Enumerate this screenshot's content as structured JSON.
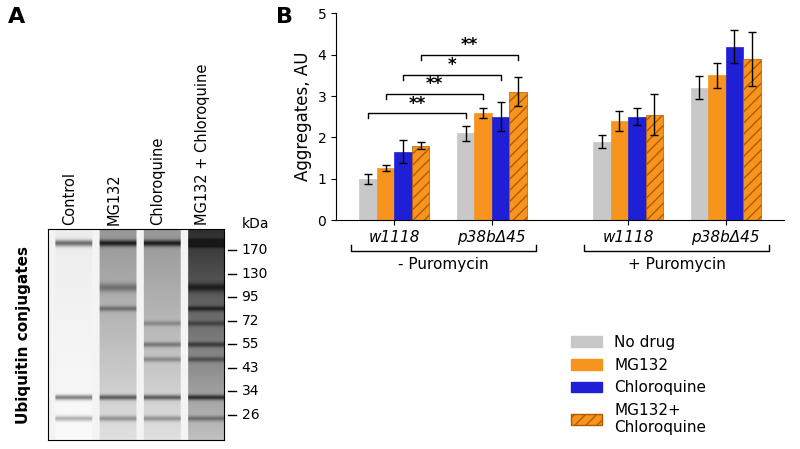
{
  "panel_a": {
    "label": "A",
    "y_label": "Ubiquitin conjugates",
    "lanes": [
      "Control",
      "MG132",
      "Chloroquine",
      "MG132 + Chloroquine"
    ],
    "marker_title": "kDa",
    "markers": [
      170,
      130,
      95,
      72,
      55,
      43,
      34,
      26
    ]
  },
  "chart_data": {
    "label": "B",
    "type": "bar",
    "y_label": "Aggregates, AU",
    "groups": [
      {
        "label": "- Puromycin",
        "categories": [
          "w1118",
          "p38bΔ45"
        ]
      },
      {
        "label": "+ Puromycin",
        "categories": [
          "w1118",
          "p38bΔ45"
        ]
      }
    ],
    "series": [
      {
        "name": "No drug",
        "color": "#c8c8c8",
        "values": [
          1.0,
          2.1,
          1.9,
          3.2
        ],
        "errors": [
          0.12,
          0.18,
          0.15,
          0.28
        ]
      },
      {
        "name": "MG132",
        "color": "#f7941d",
        "values": [
          1.25,
          2.6,
          2.4,
          3.5
        ],
        "errors": [
          0.07,
          0.12,
          0.25,
          0.3
        ]
      },
      {
        "name": "Chloroquine",
        "color": "#1f1fd6",
        "values": [
          1.65,
          2.5,
          2.5,
          4.2
        ],
        "errors": [
          0.28,
          0.35,
          0.2,
          0.4
        ]
      },
      {
        "name": "MG132+\nChloroquine",
        "color": "#f7941d",
        "values": [
          1.8,
          3.1,
          2.55,
          3.9
        ],
        "errors": [
          0.08,
          0.35,
          0.5,
          0.65
        ]
      }
    ],
    "significance": {
      "group": "- Puromycin",
      "between": [
        "w1118",
        "p38bΔ45"
      ],
      "labels": [
        "**",
        "**",
        "*",
        "**"
      ]
    },
    "ylim": [
      0,
      5
    ],
    "yticks": [
      0,
      1,
      2,
      3,
      4,
      5
    ],
    "legend": "lower right"
  }
}
